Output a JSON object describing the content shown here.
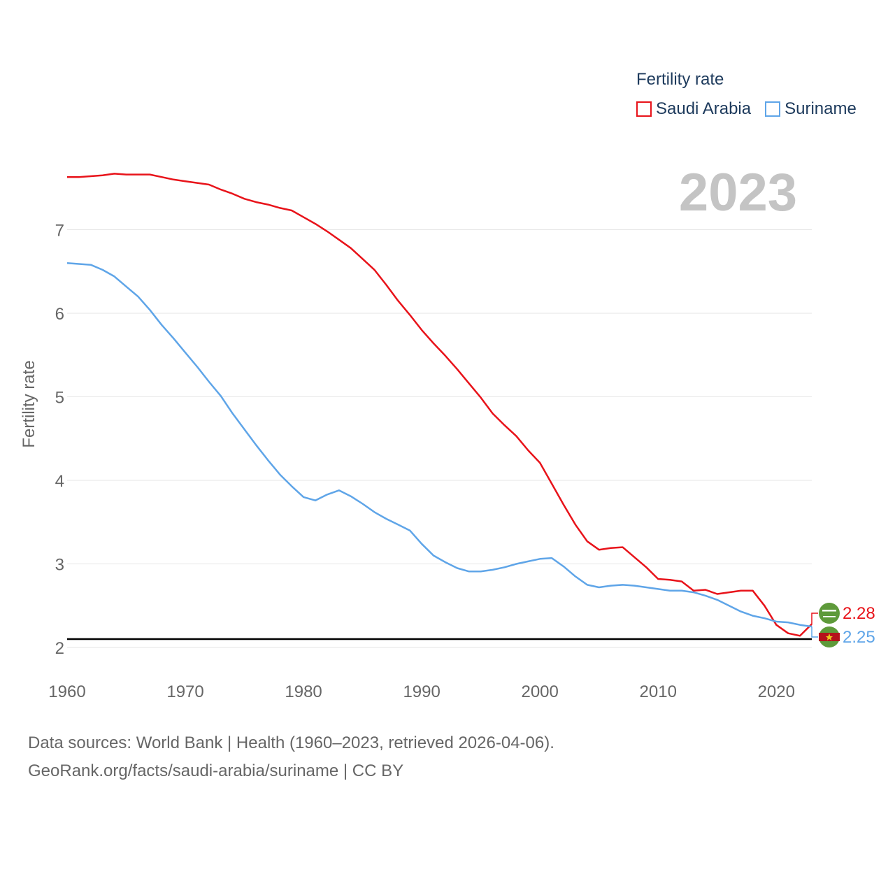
{
  "chart_data": {
    "type": "line",
    "title": "",
    "legend_title": "Fertility rate",
    "year_label": "2023",
    "ylabel": "Fertility rate",
    "xlabel": "",
    "xlim": [
      1960,
      2023
    ],
    "ylim": [
      2,
      7.8
    ],
    "x_ticks": [
      1960,
      1970,
      1980,
      1990,
      2000,
      2010,
      2020
    ],
    "y_ticks": [
      2,
      3,
      4,
      5,
      6,
      7
    ],
    "reference_line": 2.1,
    "series": [
      {
        "name": "Saudi Arabia",
        "color": "#e8131a",
        "end_label": "2.28",
        "flag": "saudi-arabia-flag-icon",
        "x": [
          1960,
          1961,
          1962,
          1963,
          1964,
          1965,
          1966,
          1967,
          1968,
          1969,
          1970,
          1971,
          1972,
          1973,
          1974,
          1975,
          1976,
          1977,
          1978,
          1979,
          1980,
          1981,
          1982,
          1983,
          1984,
          1985,
          1986,
          1987,
          1988,
          1989,
          1990,
          1991,
          1992,
          1993,
          1994,
          1995,
          1996,
          1997,
          1998,
          1999,
          2000,
          2001,
          2002,
          2003,
          2004,
          2005,
          2006,
          2007,
          2008,
          2009,
          2010,
          2011,
          2012,
          2013,
          2014,
          2015,
          2016,
          2017,
          2018,
          2019,
          2020,
          2021,
          2022,
          2023
        ],
        "values": [
          7.63,
          7.63,
          7.64,
          7.65,
          7.67,
          7.66,
          7.66,
          7.66,
          7.63,
          7.6,
          7.58,
          7.56,
          7.54,
          7.48,
          7.43,
          7.37,
          7.33,
          7.3,
          7.26,
          7.23,
          7.15,
          7.07,
          6.98,
          6.88,
          6.78,
          6.65,
          6.52,
          6.34,
          6.15,
          5.98,
          5.8,
          5.64,
          5.49,
          5.33,
          5.16,
          4.99,
          4.8,
          4.66,
          4.53,
          4.36,
          4.21,
          3.96,
          3.71,
          3.47,
          3.27,
          3.17,
          3.19,
          3.2,
          3.08,
          2.96,
          2.82,
          2.81,
          2.79,
          2.68,
          2.69,
          2.64,
          2.66,
          2.68,
          2.68,
          2.5,
          2.27,
          2.17,
          2.14,
          2.28
        ]
      },
      {
        "name": "Suriname",
        "color": "#5fa5e8",
        "end_label": "2.25",
        "flag": "suriname-flag-icon",
        "x": [
          1960,
          1961,
          1962,
          1963,
          1964,
          1965,
          1966,
          1967,
          1968,
          1969,
          1970,
          1971,
          1972,
          1973,
          1974,
          1975,
          1976,
          1977,
          1978,
          1979,
          1980,
          1981,
          1982,
          1983,
          1984,
          1985,
          1986,
          1987,
          1988,
          1989,
          1990,
          1991,
          1992,
          1993,
          1994,
          1995,
          1996,
          1997,
          1998,
          1999,
          2000,
          2001,
          2002,
          2003,
          2004,
          2005,
          2006,
          2007,
          2008,
          2009,
          2010,
          2011,
          2012,
          2013,
          2014,
          2015,
          2016,
          2017,
          2018,
          2019,
          2020,
          2021,
          2022,
          2023
        ],
        "values": [
          6.6,
          6.59,
          6.58,
          6.52,
          6.44,
          6.32,
          6.2,
          6.04,
          5.86,
          5.7,
          5.53,
          5.36,
          5.18,
          5.01,
          4.8,
          4.61,
          4.42,
          4.24,
          4.07,
          3.93,
          3.8,
          3.76,
          3.83,
          3.88,
          3.81,
          3.72,
          3.62,
          3.54,
          3.47,
          3.4,
          3.24,
          3.1,
          3.02,
          2.95,
          2.91,
          2.91,
          2.93,
          2.96,
          3.0,
          3.03,
          3.06,
          3.07,
          2.97,
          2.85,
          2.75,
          2.72,
          2.74,
          2.75,
          2.74,
          2.72,
          2.7,
          2.68,
          2.68,
          2.66,
          2.62,
          2.57,
          2.5,
          2.43,
          2.38,
          2.35,
          2.31,
          2.3,
          2.27,
          2.25
        ]
      }
    ]
  },
  "footer": {
    "line1": "Data sources: World Bank | Health (1960–2023, retrieved 2026-04-06).",
    "line2": "GeoRank.org/facts/saudi-arabia/suriname | CC BY"
  }
}
